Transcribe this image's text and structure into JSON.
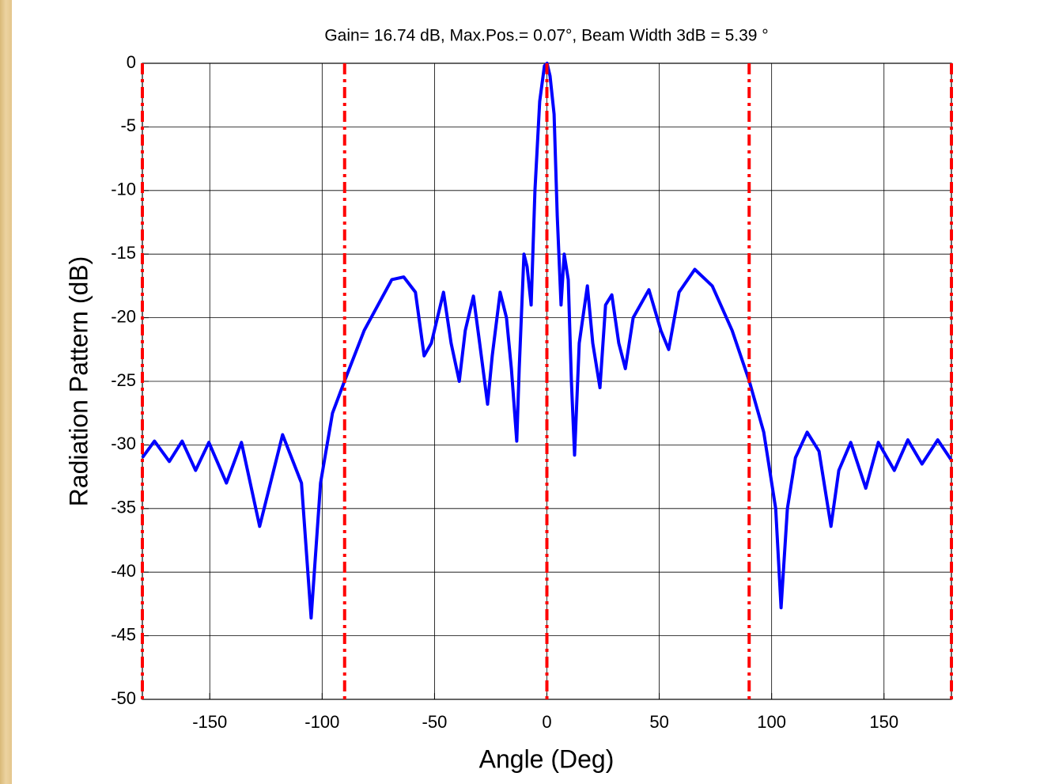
{
  "chart_data": {
    "type": "line",
    "title": "Gain= 16.74 dB,  Max.Pos.= 0.07°, Beam Width 3dB = 5.39 °",
    "xlabel": "Angle (Deg)",
    "ylabel": "Radiation Pattern (dB)",
    "x": [
      -180,
      -174.6,
      -168,
      -162.3,
      -156.3,
      -150.4,
      -142.6,
      -135.9,
      -127.8,
      -117.6,
      -109.2,
      -104.9,
      -100.7,
      -95.4,
      -90.1,
      -81.3,
      -69,
      -63.7,
      -58.5,
      -54.6,
      -51.4,
      -46,
      -42.6,
      -39,
      -36.3,
      -32.7,
      -29.9,
      -26.4,
      -24.3,
      -20.8,
      -18,
      -15.8,
      -13.4,
      -12.3,
      -10.2,
      -8.8,
      -7,
      -5.3,
      -3.2,
      -1.1,
      0.07,
      1.4,
      3.2,
      4.6,
      6.3,
      7.7,
      9.5,
      10.9,
      12.3,
      14.4,
      18,
      20.4,
      23.6,
      26.1,
      28.9,
      32,
      34.9,
      38.4,
      45.4,
      50.7,
      54.2,
      58.8,
      65.8,
      73.6,
      82.4,
      90.1,
      96.5,
      101.8,
      104.2,
      107,
      110.6,
      115.8,
      121.1,
      126.4,
      129.9,
      135.2,
      141.9,
      147.5,
      154.6,
      160.6,
      166.9,
      173.9,
      180
    ],
    "series": [
      {
        "color": "#0000ff",
        "values": [
          -31,
          -29.7,
          -31.3,
          -29.7,
          -32,
          -29.8,
          -33,
          -29.8,
          -36.4,
          -29.2,
          -33,
          -43.6,
          -33,
          -27.5,
          -25,
          -21,
          -17,
          -16.8,
          -18,
          -23,
          -22,
          -18,
          -22,
          -25,
          -21,
          -18.3,
          -22,
          -26.8,
          -23,
          -18,
          -20,
          -24,
          -29.7,
          -24,
          -15,
          -16,
          -19,
          -10,
          -3,
          -0.2,
          0,
          -1,
          -4,
          -12,
          -19,
          -15,
          -17,
          -25,
          -30.8,
          -22,
          -17.5,
          -22,
          -25.5,
          -19,
          -18.2,
          -22,
          -24,
          -20,
          -17.8,
          -21,
          -22.5,
          -18,
          -16.2,
          -17.5,
          -21,
          -25,
          -29,
          -35,
          -42.8,
          -35,
          -31,
          -29,
          -30.5,
          -36.4,
          -32,
          -29.8,
          -33.4,
          -29.8,
          -32,
          -29.6,
          -31.5,
          -29.6,
          -31.2
        ]
      }
    ],
    "vlines": {
      "color": "#ff0000",
      "values": [
        -180,
        -90,
        0,
        90,
        180
      ]
    },
    "xlim": [
      -180,
      180
    ],
    "xticks": [
      -150,
      -100,
      -50,
      0,
      50,
      100,
      150
    ],
    "ylim": [
      -50,
      0
    ],
    "yticks": [
      -50,
      -45,
      -40,
      -35,
      -30,
      -25,
      -20,
      -15,
      -10,
      -5,
      0
    ],
    "grid": true
  }
}
